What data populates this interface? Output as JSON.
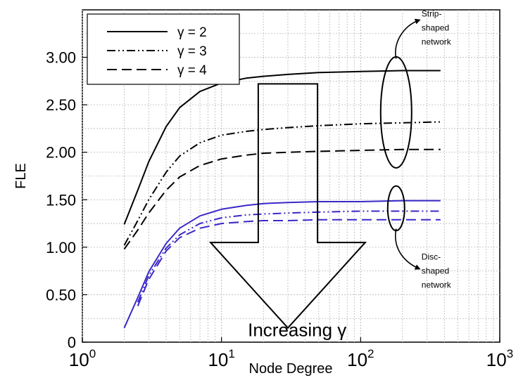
{
  "chart_data": {
    "type": "line",
    "title": "",
    "xlabel": "Node Degree",
    "ylabel": "FLE",
    "xscale": "log",
    "xlim": [
      1,
      1000
    ],
    "ylim": [
      0,
      3.5
    ],
    "x_ticks": [
      {
        "value": 1,
        "base": "10",
        "exp": "0"
      },
      {
        "value": 10,
        "base": "10",
        "exp": "1"
      },
      {
        "value": 100,
        "base": "10",
        "exp": "2"
      },
      {
        "value": 1000,
        "base": "10",
        "exp": "3"
      }
    ],
    "y_ticks": [
      {
        "value": 0,
        "label": "0"
      },
      {
        "value": 0.5,
        "label": "0.50"
      },
      {
        "value": 1,
        "label": "1.00"
      },
      {
        "value": 1.5,
        "label": "1.50"
      },
      {
        "value": 2,
        "label": "2.00"
      },
      {
        "value": 2.5,
        "label": "2.50"
      },
      {
        "value": 3,
        "label": "3.00"
      }
    ],
    "grid": true,
    "legend_position": "top-left",
    "legend": [
      {
        "label": "γ = 2",
        "dash": "solid"
      },
      {
        "label": "γ = 3",
        "dash": "dash-dot-dot"
      },
      {
        "label": "γ = 4",
        "dash": "dashed"
      }
    ],
    "x": [
      2,
      2.5,
      3,
      4,
      5,
      7,
      10,
      15,
      20,
      30,
      50,
      100,
      200,
      375
    ],
    "series": [
      {
        "group": "strip",
        "gamma": 2,
        "dash": "solid",
        "color": "#000000",
        "values": [
          1.24,
          1.6,
          1.9,
          2.27,
          2.47,
          2.64,
          2.73,
          2.78,
          2.8,
          2.82,
          2.84,
          2.85,
          2.86,
          2.86
        ]
      },
      {
        "group": "strip",
        "gamma": 3,
        "dash": "dash-dot-dot",
        "color": "#000000",
        "values": [
          1.02,
          1.28,
          1.5,
          1.79,
          1.96,
          2.1,
          2.18,
          2.22,
          2.24,
          2.26,
          2.28,
          2.3,
          2.31,
          2.32
        ]
      },
      {
        "group": "strip",
        "gamma": 4,
        "dash": "dashed",
        "color": "#000000",
        "values": [
          0.98,
          1.18,
          1.36,
          1.6,
          1.74,
          1.86,
          1.93,
          1.97,
          1.99,
          2.0,
          2.01,
          2.02,
          2.03,
          2.03
        ]
      },
      {
        "group": "disc",
        "gamma": 2,
        "dash": "solid",
        "color": "#3a28c8",
        "values": [
          0.15,
          0.47,
          0.74,
          1.04,
          1.2,
          1.33,
          1.4,
          1.44,
          1.46,
          1.47,
          1.48,
          1.48,
          1.49,
          1.49
        ]
      },
      {
        "group": "disc",
        "gamma": 3,
        "dash": "dash-dot-dot",
        "color": "#3a28c8",
        "values": [
          null,
          0.42,
          0.7,
          0.99,
          1.13,
          1.25,
          1.31,
          1.34,
          1.35,
          1.36,
          1.37,
          1.38,
          1.38,
          1.38
        ]
      },
      {
        "group": "disc",
        "gamma": 4,
        "dash": "dashed",
        "color": "#3a28c8",
        "values": [
          null,
          0.38,
          0.66,
          0.96,
          1.1,
          1.2,
          1.25,
          1.27,
          1.28,
          1.28,
          1.29,
          1.29,
          1.29,
          1.29
        ]
      }
    ],
    "annotations": {
      "arrow_label": "Increasing γ",
      "arrow_from": {
        "x": 30,
        "y": 2.72
      },
      "arrow_to": {
        "x": 30,
        "y": 0.15
      },
      "strip_ellipse": {
        "x": 180,
        "y": 2.42,
        "y_span": [
          1.83,
          3.0
        ]
      },
      "disc_ellipse": {
        "x": 180,
        "y": 1.41,
        "y_span": [
          1.18,
          1.65
        ]
      },
      "strip_label": [
        "Strip-",
        "shaped",
        "network"
      ],
      "disc_label": [
        "Disc-",
        "shaped",
        "network"
      ]
    }
  }
}
